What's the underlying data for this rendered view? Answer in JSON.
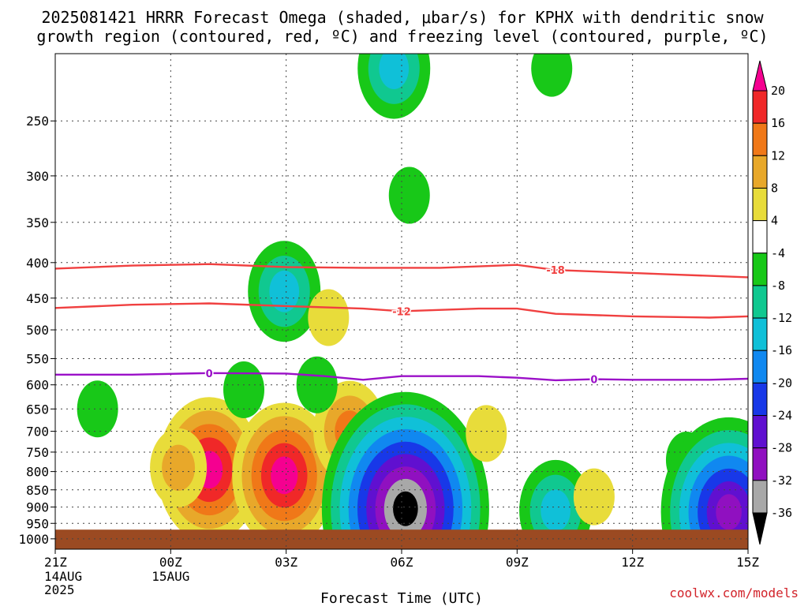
{
  "title": {
    "line1": "2025081421 HRRR Forecast Omega (shaded, μbar/s) for KPHX with dendritic snow",
    "line2": "growth region (contoured, red, ºC) and freezing level (contoured, purple, ºC)"
  },
  "credit": "coolwx.com/models",
  "chart_data": {
    "type": "heatmap",
    "xlabel": "Forecast Time (UTC)",
    "ylabel": "",
    "x_ticks": [
      {
        "label": "21Z",
        "sub": [
          "14AUG",
          "2025"
        ],
        "hour": 0
      },
      {
        "label": "00Z",
        "sub": [
          "15AUG"
        ],
        "hour": 3
      },
      {
        "label": "03Z",
        "sub": [],
        "hour": 6
      },
      {
        "label": "06Z",
        "sub": [],
        "hour": 9
      },
      {
        "label": "09Z",
        "sub": [],
        "hour": 12
      },
      {
        "label": "12Z",
        "sub": [],
        "hour": 15
      },
      {
        "label": "15Z",
        "sub": [],
        "hour": 18
      }
    ],
    "xlim": [
      0,
      18
    ],
    "y_ticks": [
      250,
      300,
      350,
      400,
      450,
      500,
      550,
      600,
      650,
      700,
      750,
      800,
      850,
      900,
      950,
      1000
    ],
    "ylim_hpa": [
      200,
      1035
    ],
    "y_scale": "log",
    "grid": true,
    "colorbar": {
      "labels": [
        "20",
        "16",
        "12",
        "8",
        "4",
        "-4",
        "-8",
        "-12",
        "-16",
        "-20",
        "-24",
        "-28",
        "-32",
        "-36"
      ],
      "colors": [
        "#f50090",
        "#f02828",
        "#f07818",
        "#e8a82a",
        "#e8dc3a",
        "#ffffff",
        "#18c818",
        "#10c890",
        "#10c0d8",
        "#1088f0",
        "#1838e8",
        "#6010d0",
        "#9010c0",
        "#a8a8a8",
        "#000000"
      ]
    },
    "omega_features": [
      {
        "hour": 4,
        "p": 795,
        "core": 16,
        "peak": 20
      },
      {
        "hour": 3.2,
        "p": 790,
        "core": 8
      },
      {
        "hour": 5.95,
        "p": 810,
        "core": 12,
        "peak": 20
      },
      {
        "hour": 7.65,
        "p": 700,
        "core": 4,
        "peak": 12
      },
      {
        "hour": 9.1,
        "p": 905,
        "core": -32,
        "peak": -36
      },
      {
        "hour": 1.1,
        "p": 650,
        "core": -4
      },
      {
        "hour": 4.9,
        "p": 610,
        "core": -4
      },
      {
        "hour": 6.8,
        "p": 600,
        "core": -4
      },
      {
        "hour": 5.95,
        "p": 440,
        "core": -4,
        "peak": -12
      },
      {
        "hour": 7.1,
        "p": 480,
        "core": 4
      },
      {
        "hour": 8.8,
        "p": 210,
        "core": -4,
        "peak": -12
      },
      {
        "hour": 9.2,
        "p": 320,
        "core": -4
      },
      {
        "hour": 12.9,
        "p": 210,
        "core": -4
      },
      {
        "hour": 11.2,
        "p": 705,
        "core": 4
      },
      {
        "hour": 16.4,
        "p": 770,
        "core": -4
      },
      {
        "hour": 13.0,
        "p": 910,
        "core": -4,
        "peak": -12
      },
      {
        "hour": 17.5,
        "p": 915,
        "core": -12,
        "peak": -28
      },
      {
        "hour": 14.0,
        "p": 870,
        "core": 4
      }
    ],
    "contours": [
      {
        "label": "-18",
        "color": "#f04040",
        "points": [
          [
            0,
            408
          ],
          [
            2,
            404
          ],
          [
            4,
            402
          ],
          [
            6,
            406
          ],
          [
            8,
            407
          ],
          [
            10,
            407
          ],
          [
            12,
            403
          ],
          [
            13,
            410
          ],
          [
            15,
            414
          ],
          [
            16,
            416
          ],
          [
            18,
            420
          ]
        ]
      },
      {
        "label": "-12",
        "color": "#f04040",
        "points": [
          [
            0,
            465
          ],
          [
            2,
            460
          ],
          [
            4,
            458
          ],
          [
            6,
            462
          ],
          [
            8,
            466
          ],
          [
            9,
            470
          ],
          [
            11,
            466
          ],
          [
            12,
            466
          ],
          [
            13,
            474
          ],
          [
            15,
            478
          ],
          [
            17,
            480
          ],
          [
            18,
            478
          ]
        ]
      },
      {
        "label": "0",
        "color": "#9b10c8",
        "points": [
          [
            0,
            580
          ],
          [
            2,
            580
          ],
          [
            4,
            577
          ],
          [
            6,
            578
          ],
          [
            7,
            583
          ],
          [
            8,
            590
          ],
          [
            9,
            583
          ],
          [
            11,
            583
          ],
          [
            12,
            586
          ],
          [
            13,
            591
          ],
          [
            14,
            589
          ],
          [
            15,
            590
          ],
          [
            17,
            590
          ],
          [
            18,
            588
          ]
        ]
      }
    ],
    "surface_hpa": 970,
    "surface_color": "#9b4a22"
  }
}
